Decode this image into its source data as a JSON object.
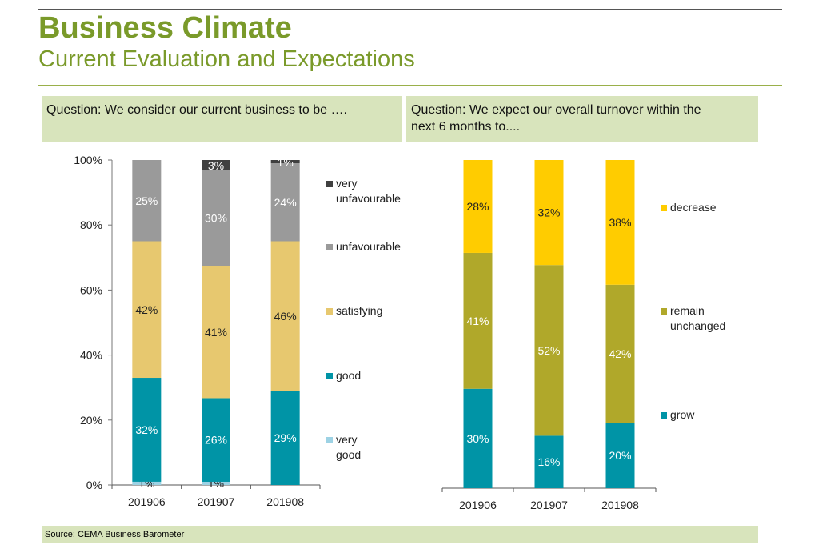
{
  "header": {
    "title": "Business Climate",
    "subtitle": "Current Evaluation and Expectations"
  },
  "questions": {
    "left": "Question: We consider our current business to be ….",
    "right_line1": "Question: We expect our overall turnover within the",
    "right_line2": "next 6 months to...."
  },
  "source": "Source: CEMA Business Barometer",
  "colors": {
    "accent": "#7a9a2a",
    "box": "#d8e4bc"
  },
  "chart_data": [
    {
      "type": "bar",
      "stacked": true,
      "categories": [
        "201906",
        "201907",
        "201908"
      ],
      "ylim": [
        0,
        100
      ],
      "yticks": [
        "0%",
        "20%",
        "40%",
        "60%",
        "80%",
        "100%"
      ],
      "legend_placement": "right",
      "series": [
        {
          "name": "very good",
          "color": "#9dd2e4",
          "values": [
            1,
            1,
            0
          ],
          "labels": [
            "1%",
            "1%",
            ""
          ],
          "label_color": "#222"
        },
        {
          "name": "good",
          "color": "#0094a6",
          "values": [
            32,
            26,
            29
          ],
          "labels": [
            "32%",
            "26%",
            "29%"
          ],
          "label_color": "#fff"
        },
        {
          "name": "satisfying",
          "color": "#e7c86f",
          "values": [
            42,
            41,
            46
          ],
          "labels": [
            "42%",
            "41%",
            "46%"
          ],
          "label_color": "#222"
        },
        {
          "name": "unfavourable",
          "color": "#9a9a9a",
          "values": [
            25,
            30,
            24
          ],
          "labels": [
            "25%",
            "30%",
            "24%"
          ],
          "label_color": "#fff"
        },
        {
          "name": "very unfavourable",
          "color": "#404040",
          "values": [
            0,
            3,
            1
          ],
          "labels": [
            "",
            "3%",
            "1%"
          ],
          "label_color": "#fff"
        }
      ]
    },
    {
      "type": "bar",
      "stacked": true,
      "categories": [
        "201906",
        "201907",
        "201908"
      ],
      "ylim": [
        0,
        100
      ],
      "legend_placement": "right",
      "series": [
        {
          "name": "grow",
          "color": "#0094a6",
          "values": [
            30,
            16,
            20
          ],
          "labels": [
            "30%",
            "16%",
            "20%"
          ],
          "label_color": "#fff"
        },
        {
          "name": "remain unchanged",
          "color": "#b0a82a",
          "values": [
            41,
            52,
            42
          ],
          "labels": [
            "41%",
            "52%",
            "42%"
          ],
          "label_color": "#fff"
        },
        {
          "name": "decrease",
          "color": "#ffcc00",
          "values": [
            28,
            32,
            38
          ],
          "labels": [
            "28%",
            "32%",
            "38%"
          ],
          "label_color": "#222"
        }
      ]
    }
  ]
}
